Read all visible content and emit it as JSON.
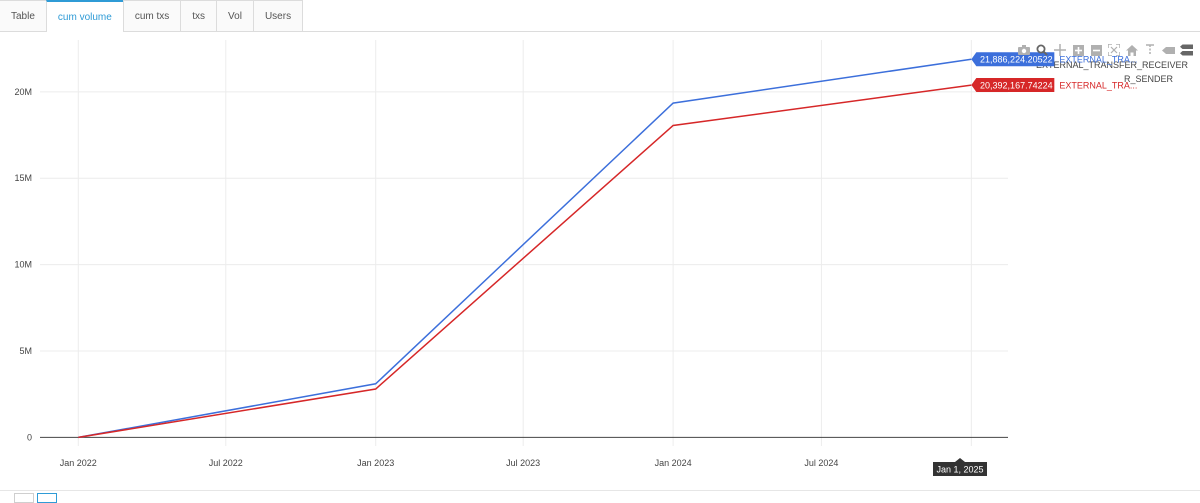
{
  "tabs": [
    {
      "label": "Table",
      "active": false
    },
    {
      "label": "cum volume",
      "active": true
    },
    {
      "label": "cum txs",
      "active": false
    },
    {
      "label": "txs",
      "active": false
    },
    {
      "label": "Vol",
      "active": false
    },
    {
      "label": "Users",
      "active": false
    }
  ],
  "modebar": [
    "camera-icon",
    "zoom-icon",
    "pan-icon",
    "zoom-in-icon",
    "zoom-out-icon",
    "autoscale-icon",
    "home-icon",
    "spike-lines-icon",
    "hover-closest-icon",
    "hover-compare-icon"
  ],
  "chart_data": {
    "type": "line",
    "title": "",
    "xlabel": "",
    "ylabel": "",
    "x": [
      "2022-01-01",
      "2023-01-01",
      "2024-01-01",
      "2025-01-01"
    ],
    "x_ticks": [
      "Jan 2022",
      "Jul 2022",
      "Jan 2023",
      "Jul 2023",
      "Jan 2024",
      "Jul 2024"
    ],
    "x_range": [
      "2021-11-15",
      "2025-02-15"
    ],
    "ylim": [
      -500000,
      23000000
    ],
    "y_ticks": [
      {
        "value": 0,
        "label": "0"
      },
      {
        "value": 5000000,
        "label": "5M"
      },
      {
        "value": 10000000,
        "label": "10M"
      },
      {
        "value": 15000000,
        "label": "15M"
      },
      {
        "value": 20000000,
        "label": "20M"
      }
    ],
    "grid": true,
    "legend": "top-right",
    "series": [
      {
        "name": "EXTERNAL_TRANSFER_RECEIVER",
        "color": "#3c6fdb",
        "values": [
          0,
          3100000,
          19350000,
          21886224.20522
        ],
        "hover_value": "21,886,224.20522",
        "hover_name": "EXTERNAL_TRA..."
      },
      {
        "name": "EXTERNAL_TRANSFER_SENDER",
        "color": "#d62728",
        "values": [
          0,
          2800000,
          18050000,
          20392167.74224
        ],
        "hover_value": "20,392,167.74224",
        "hover_name": "EXTERNAL_TRA..."
      }
    ],
    "legend_overlap_text": "R_SENDER",
    "hover_x_label": "Jan 1, 2025"
  }
}
